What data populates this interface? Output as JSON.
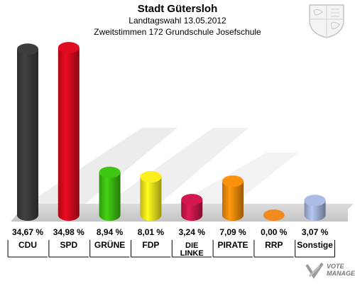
{
  "header": {
    "title": "Stadt Gütersloh",
    "line1": "Landtagswahl 13.05.2012",
    "line2": "Zweitstimmen 172 Grundschule Josefschule"
  },
  "logo": {
    "line1": "VOTE",
    "line2": "MANAGER"
  },
  "colors": {
    "CDU": "#3a3a3a",
    "SPD": "#d40a1e",
    "GRÜNE": "#3cbd11",
    "FDP": "#f1e31c",
    "DIE LINKE": "#c8174a",
    "PIRATE": "#f08a0c",
    "RRP": "#f28a1e",
    "Sonstige": "#a2b3d9"
  },
  "chart_data": {
    "type": "bar",
    "categories": [
      "CDU",
      "SPD",
      "GRÜNE",
      "FDP",
      "DIE LINKE",
      "PIRATE",
      "RRP",
      "Sonstige"
    ],
    "category_lines": [
      [
        "CDU"
      ],
      [
        "SPD"
      ],
      [
        "GRÜNE"
      ],
      [
        "FDP"
      ],
      [
        "DIE",
        "LINKE"
      ],
      [
        "PIRATE"
      ],
      [
        "RRP"
      ],
      [
        "Sonstige"
      ]
    ],
    "values": [
      34.67,
      34.98,
      8.94,
      8.01,
      3.24,
      7.09,
      0.0,
      3.07
    ],
    "value_labels": [
      "34,67 %",
      "34,98 %",
      "8,94 %",
      "8,01 %",
      "3,24 %",
      "7,09 %",
      "0,00 %",
      "3,07 %"
    ],
    "ylim": [
      0,
      35
    ]
  }
}
